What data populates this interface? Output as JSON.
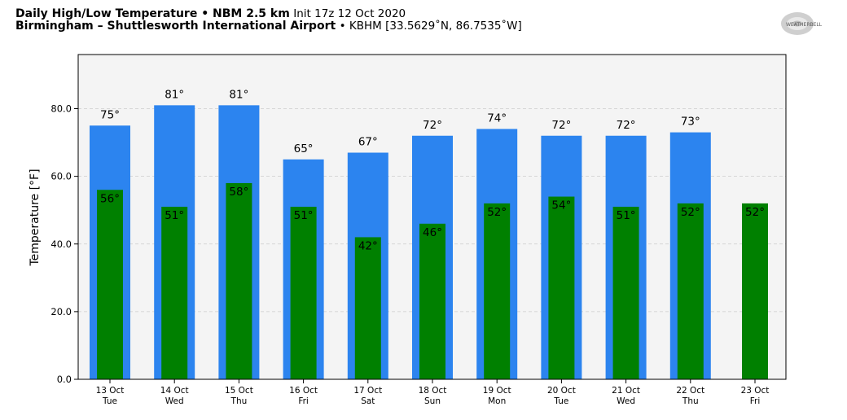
{
  "header": {
    "title_bold": "Daily High/Low Temperature • NBM 2.5 km",
    "title_init": "Init 17z 12 Oct 2020",
    "location_bold": "Birmingham – Shuttlesworth International Airport",
    "location_detail": "• KBHM [33.5629˚N, 86.7535˚W]",
    "logo_text": "WEATHERBELL"
  },
  "colors": {
    "high": "#2c84ef",
    "low": "#008000",
    "plot_bg": "#f4f4f4"
  },
  "chart_data": {
    "type": "bar",
    "ylabel": "Temperature [°F]",
    "ylim": [
      0,
      96
    ],
    "yticks": [
      0,
      20,
      40,
      60,
      80
    ],
    "ytick_labels": [
      "0.0",
      "20.0",
      "40.0",
      "60.0",
      "80.0"
    ],
    "grid": true,
    "categories": [
      [
        "13 Oct",
        "Tue"
      ],
      [
        "14 Oct",
        "Wed"
      ],
      [
        "15 Oct",
        "Thu"
      ],
      [
        "16 Oct",
        "Fri"
      ],
      [
        "17 Oct",
        "Sat"
      ],
      [
        "18 Oct",
        "Sun"
      ],
      [
        "19 Oct",
        "Mon"
      ],
      [
        "20 Oct",
        "Tue"
      ],
      [
        "21 Oct",
        "Wed"
      ],
      [
        "22 Oct",
        "Thu"
      ],
      [
        "23 Oct",
        "Fri"
      ]
    ],
    "series": [
      {
        "key": "high",
        "values": [
          75,
          81,
          81,
          65,
          67,
          72,
          74,
          72,
          72,
          73,
          null
        ],
        "labels": [
          "75°",
          "81°",
          "81°",
          "65°",
          "67°",
          "72°",
          "74°",
          "72°",
          "72°",
          "73°",
          ""
        ]
      },
      {
        "key": "low",
        "values": [
          56,
          51,
          58,
          51,
          42,
          46,
          52,
          54,
          51,
          52,
          52
        ],
        "labels": [
          "56°",
          "51°",
          "58°",
          "51°",
          "42°",
          "46°",
          "52°",
          "54°",
          "51°",
          "52°",
          "52°"
        ]
      }
    ]
  }
}
